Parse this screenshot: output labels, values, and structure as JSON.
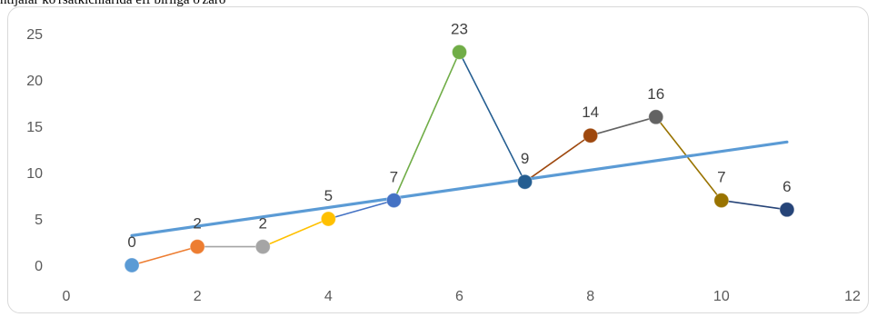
{
  "top_text": "ntijalar    ko'rsatkichlarida     eff      birliga     o'zaro",
  "chart_data": {
    "type": "scatter",
    "title": "",
    "xlabel": "",
    "ylabel": "",
    "xlim": [
      0,
      12
    ],
    "ylim": [
      0,
      25
    ],
    "x_ticks": [
      0,
      2,
      4,
      6,
      8,
      10,
      12
    ],
    "y_ticks": [
      0,
      5,
      10,
      15,
      20,
      25
    ],
    "grid": false,
    "legend": "none",
    "points": [
      {
        "x": 1,
        "y": 0,
        "label": "0",
        "color": "#5b9bd5"
      },
      {
        "x": 2,
        "y": 2,
        "label": "2",
        "color": "#ed7d31"
      },
      {
        "x": 3,
        "y": 2,
        "label": "2",
        "color": "#a5a5a5"
      },
      {
        "x": 4,
        "y": 5,
        "label": "5",
        "color": "#ffc000"
      },
      {
        "x": 5,
        "y": 7,
        "label": "7",
        "color": "#4472c4"
      },
      {
        "x": 6,
        "y": 23,
        "label": "23",
        "color": "#70ad47"
      },
      {
        "x": 7,
        "y": 9,
        "label": "9",
        "color": "#255e91"
      },
      {
        "x": 8,
        "y": 14,
        "label": "14",
        "color": "#9e480e"
      },
      {
        "x": 9,
        "y": 16,
        "label": "16",
        "color": "#636363"
      },
      {
        "x": 10,
        "y": 7,
        "label": "7",
        "color": "#997300"
      },
      {
        "x": 11,
        "y": 6,
        "label": "6",
        "color": "#264478"
      }
    ],
    "trendline": {
      "type": "linear",
      "color": "#5b9bd5",
      "x": [
        1,
        11
      ],
      "y": [
        3.2,
        13.3
      ]
    }
  }
}
